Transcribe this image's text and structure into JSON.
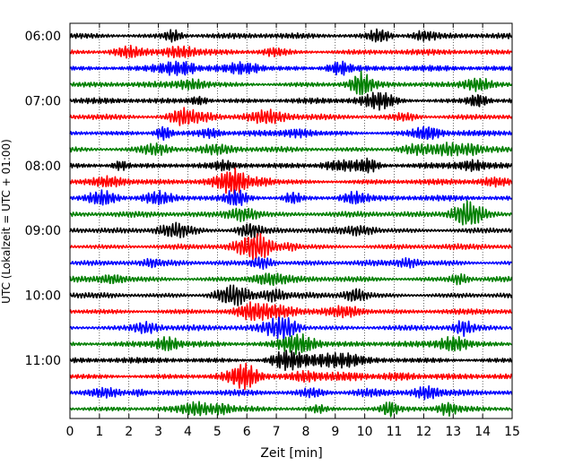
{
  "chart_data": {
    "type": "line",
    "title": "",
    "xlabel": "Zeit  [min]",
    "ylabel": "UTC (Lokalzeit = UTC + 01:00)",
    "xlim": [
      0,
      15
    ],
    "x_ticks": [
      "0",
      "1",
      "2",
      "3",
      "4",
      "5",
      "6",
      "7",
      "8",
      "9",
      "10",
      "11",
      "12",
      "13",
      "14",
      "15"
    ],
    "y_ticks": [
      "06:00",
      "07:00",
      "08:00",
      "09:00",
      "10:00",
      "11:00"
    ],
    "grid": "vertical dotted lines at each minute",
    "trace_interval_min": 15,
    "start_time": "06:00",
    "colors": [
      "#000000",
      "#ff0000",
      "#0000ff",
      "#008000"
    ],
    "series": [
      {
        "time": "06:00",
        "color": "#000000"
      },
      {
        "time": "06:15",
        "color": "#ff0000"
      },
      {
        "time": "06:30",
        "color": "#0000ff"
      },
      {
        "time": "06:45",
        "color": "#008000"
      },
      {
        "time": "07:00",
        "color": "#000000"
      },
      {
        "time": "07:15",
        "color": "#ff0000"
      },
      {
        "time": "07:30",
        "color": "#0000ff"
      },
      {
        "time": "07:45",
        "color": "#008000"
      },
      {
        "time": "08:00",
        "color": "#000000"
      },
      {
        "time": "08:15",
        "color": "#ff0000"
      },
      {
        "time": "08:30",
        "color": "#0000ff"
      },
      {
        "time": "08:45",
        "color": "#008000"
      },
      {
        "time": "09:00",
        "color": "#000000"
      },
      {
        "time": "09:15",
        "color": "#ff0000"
      },
      {
        "time": "09:30",
        "color": "#0000ff"
      },
      {
        "time": "09:45",
        "color": "#008000"
      },
      {
        "time": "10:00",
        "color": "#000000"
      },
      {
        "time": "10:15",
        "color": "#ff0000"
      },
      {
        "time": "10:30",
        "color": "#0000ff"
      },
      {
        "time": "10:45",
        "color": "#008000"
      },
      {
        "time": "11:00",
        "color": "#000000"
      },
      {
        "time": "11:15",
        "color": "#ff0000"
      },
      {
        "time": "11:30",
        "color": "#0000ff"
      },
      {
        "time": "11:45",
        "color": "#008000"
      }
    ]
  }
}
